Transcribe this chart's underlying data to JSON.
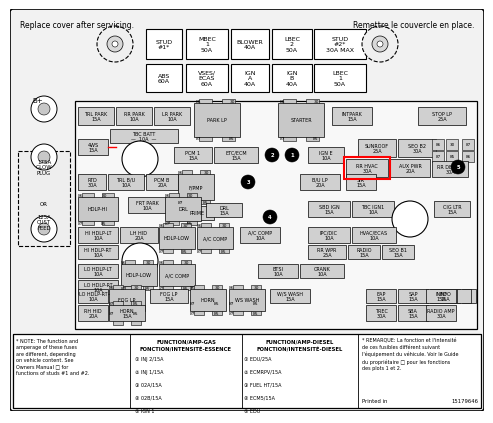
{
  "title_left": "Replace cover after servicing.",
  "title_right": "Remettre le couvercle en place.",
  "bg_color": "#ffffff",
  "note_text": "* NOTE: The function and\namperage of these fuses\nare different, depending\non vehicle content. See\nOwners Manual □ for\nfunctions of studs #1 and #2.",
  "gas_header": "FUNCTION/AMP-GAS\nFONCTION/INTENSITÉ-ESSENCE",
  "diesel_header": "FUNCTION/AMP-DIESEL\nFONCTION/INTENSITÉ-DIESEL",
  "gas_items": [
    "① INJ 2/15A",
    "② INJ 1/15A",
    "③ 02A/15A",
    "④ 02B/15A",
    "⑤ IGN 1"
  ],
  "diesel_items": [
    "① EDU/25A",
    "② ECMRPV/15A",
    "③ FUEL HT/15A",
    "④ ECM5/15A",
    "⑤ EDU"
  ],
  "remarque_text": "* REMARQUE: La fonction et l'intensité\nde ces fusibles différent suivant\nl'équipement du véhicule. Voir le Guide\ndu propriétaire □ pour les fonctions\ndes plots 1 et 2.",
  "part_number": "15179646",
  "printed_in": "Printed in"
}
